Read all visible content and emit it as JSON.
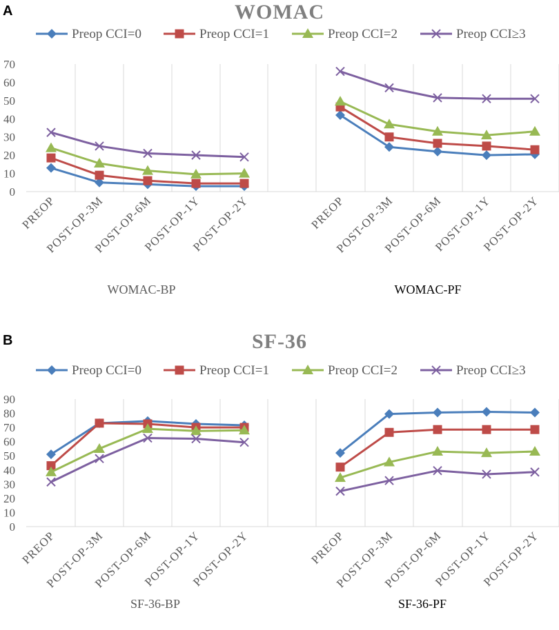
{
  "series_meta": [
    {
      "name": "Preop CCI=0",
      "color": "#4a7ebb",
      "marker": "diamond"
    },
    {
      "name": "Preop CCI=1",
      "color": "#be4b48",
      "marker": "square"
    },
    {
      "name": "Preop CCI=2",
      "color": "#98b954",
      "marker": "triangle"
    },
    {
      "name": "Preop CCI≥3",
      "color": "#7d60a0",
      "marker": "x"
    }
  ],
  "chart_data": [
    {
      "panel": "A",
      "title": "WOMAC",
      "type": "line",
      "ylim": [
        0,
        70
      ],
      "yticks": [
        0,
        10,
        20,
        30,
        40,
        50,
        60,
        70
      ],
      "grid": "vertical",
      "legend": "top",
      "subcharts": [
        {
          "title": "WOMAC-BP",
          "categories": [
            "PREOP",
            "POST-OP-3M",
            "POST-OP-6M",
            "POST-OP-1Y",
            "POST-OP-2Y"
          ],
          "series": [
            {
              "name": "Preop CCI=0",
              "values": [
                13,
                5,
                4,
                3,
                3
              ]
            },
            {
              "name": "Preop CCI=1",
              "values": [
                18.5,
                9,
                6,
                4.5,
                4.5
              ]
            },
            {
              "name": "Preop CCI=2",
              "values": [
                24,
                15.5,
                11.5,
                9.5,
                10
              ]
            },
            {
              "name": "Preop CCI≥3",
              "values": [
                32.5,
                25,
                21,
                20,
                19
              ]
            }
          ]
        },
        {
          "title": "WOMAC-PF",
          "categories": [
            "PREOP",
            "POST-OP-3M",
            "POST-OP-6M",
            "POST-OP-1Y",
            "POST-OP-2Y"
          ],
          "series": [
            {
              "name": "Preop CCI=0",
              "values": [
                42,
                24.5,
                22,
                20,
                20.5
              ]
            },
            {
              "name": "Preop CCI=1",
              "values": [
                46.5,
                30,
                26.5,
                25,
                23
              ]
            },
            {
              "name": "Preop CCI=2",
              "values": [
                49.5,
                37,
                33,
                31,
                33
              ]
            },
            {
              "name": "Preop CCI≥3",
              "values": [
                66,
                57,
                51.5,
                51,
                51
              ]
            }
          ]
        }
      ]
    },
    {
      "panel": "B",
      "title": "SF-36",
      "type": "line",
      "ylim": [
        0,
        90
      ],
      "yticks": [
        0,
        10,
        20,
        30,
        40,
        50,
        60,
        70,
        80,
        90
      ],
      "grid": "vertical",
      "legend": "top",
      "subcharts": [
        {
          "title": "SF-36-BP",
          "categories": [
            "PREOP",
            "POST-OP-3M",
            "POST-OP-6M",
            "POST-OP-1Y",
            "POST-OP-2Y"
          ],
          "series": [
            {
              "name": "Preop CCI=0",
              "values": [
                51,
                73,
                74.5,
                72.5,
                71.5
              ]
            },
            {
              "name": "Preop CCI=1",
              "values": [
                43,
                73,
                72.5,
                70,
                70
              ]
            },
            {
              "name": "Preop CCI=2",
              "values": [
                38.5,
                55,
                69,
                67.5,
                68
              ]
            },
            {
              "name": "Preop CCI≥3",
              "values": [
                31.5,
                48,
                62.5,
                62,
                59.5
              ]
            }
          ]
        },
        {
          "title": "SF-36-PF",
          "categories": [
            "PREOP",
            "POST-OP-3M",
            "POST-OP-6M",
            "POST-OP-1Y",
            "POST-OP-2Y"
          ],
          "series": [
            {
              "name": "Preop CCI=0",
              "values": [
                52,
                79.5,
                80.5,
                81,
                80.5
              ]
            },
            {
              "name": "Preop CCI=1",
              "values": [
                42,
                66.5,
                68.5,
                68.5,
                68.5
              ]
            },
            {
              "name": "Preop CCI=2",
              "values": [
                34.5,
                45.5,
                53,
                52,
                53
              ]
            },
            {
              "name": "Preop CCI≥3",
              "values": [
                25,
                32.5,
                39.5,
                37,
                38.5
              ]
            }
          ]
        }
      ]
    }
  ]
}
